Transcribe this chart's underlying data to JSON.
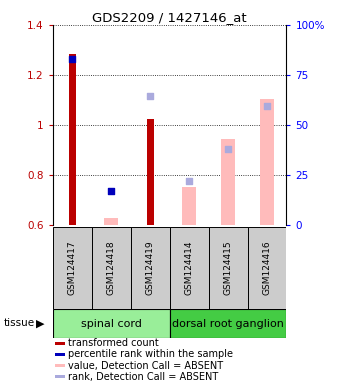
{
  "title": "GDS2209 / 1427146_at",
  "samples": [
    "GSM124417",
    "GSM124418",
    "GSM124419",
    "GSM124414",
    "GSM124415",
    "GSM124416"
  ],
  "tissue_labels": [
    "spinal cord",
    "dorsal root ganglion"
  ],
  "red_bars": [
    1.285,
    null,
    1.025,
    null,
    null,
    null
  ],
  "pink_bars": [
    null,
    0.625,
    null,
    0.75,
    0.945,
    1.105
  ],
  "blue_dots": [
    1.265,
    0.735,
    null,
    null,
    null,
    null
  ],
  "lightblue_dots": [
    null,
    null,
    1.115,
    0.775,
    0.905,
    1.075
  ],
  "ylim_left": [
    0.6,
    1.4
  ],
  "ylim_right": [
    0,
    100
  ],
  "yticks_left": [
    0.6,
    0.8,
    1.0,
    1.2,
    1.4
  ],
  "yticks_right": [
    0,
    25,
    50,
    75,
    100
  ],
  "ytick_labels_left": [
    "0.6",
    "0.8",
    "1",
    "1.2",
    "1.4"
  ],
  "ytick_labels_right": [
    "0",
    "25",
    "50",
    "75",
    "100%"
  ],
  "red_bar_width": 0.18,
  "pink_bar_width": 0.35,
  "dot_size": 18,
  "red_color": "#bb0000",
  "pink_color": "#ffbbbb",
  "blue_color": "#0000bb",
  "lightblue_color": "#aaaadd",
  "tissue_color_spinal": "#99ee99",
  "tissue_color_dorsal": "#44cc44",
  "sample_box_color": "#cccccc",
  "baseline": 0.6,
  "legend_items": [
    [
      "#bb0000",
      "transformed count"
    ],
    [
      "#0000bb",
      "percentile rank within the sample"
    ],
    [
      "#ffbbbb",
      "value, Detection Call = ABSENT"
    ],
    [
      "#aaaadd",
      "rank, Detection Call = ABSENT"
    ]
  ]
}
